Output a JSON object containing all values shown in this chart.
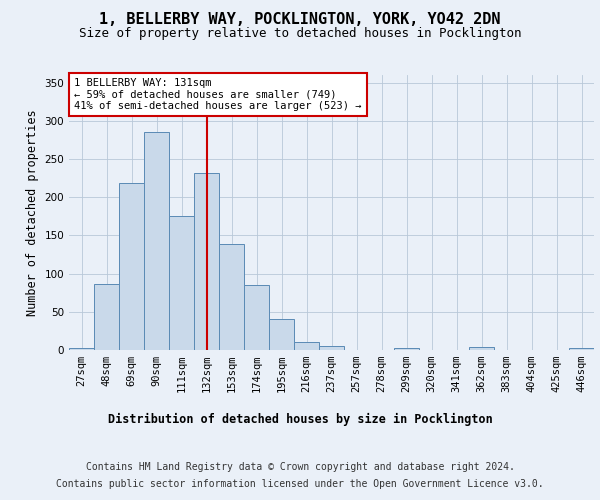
{
  "title": "1, BELLERBY WAY, POCKLINGTON, YORK, YO42 2DN",
  "subtitle": "Size of property relative to detached houses in Pocklington",
  "xlabel": "Distribution of detached houses by size in Pocklington",
  "ylabel": "Number of detached properties",
  "categories": [
    "27sqm",
    "48sqm",
    "69sqm",
    "90sqm",
    "111sqm",
    "132sqm",
    "153sqm",
    "174sqm",
    "195sqm",
    "216sqm",
    "237sqm",
    "257sqm",
    "278sqm",
    "299sqm",
    "320sqm",
    "341sqm",
    "362sqm",
    "383sqm",
    "404sqm",
    "425sqm",
    "446sqm"
  ],
  "values": [
    2,
    87,
    218,
    285,
    175,
    232,
    139,
    85,
    40,
    10,
    5,
    0,
    0,
    2,
    0,
    0,
    4,
    0,
    0,
    0,
    2
  ],
  "bar_color": "#c9d9ea",
  "bar_edge_color": "#5a8ab5",
  "vline_x_index": 5,
  "vline_color": "#cc0000",
  "annotation_text": "1 BELLERBY WAY: 131sqm\n← 59% of detached houses are smaller (749)\n41% of semi-detached houses are larger (523) →",
  "annotation_box_color": "#ffffff",
  "annotation_box_edge_color": "#cc0000",
  "background_color": "#eaf0f8",
  "plot_background_color": "#eaf0f8",
  "footer_line1": "Contains HM Land Registry data © Crown copyright and database right 2024.",
  "footer_line2": "Contains public sector information licensed under the Open Government Licence v3.0.",
  "ylim": [
    0,
    360
  ],
  "title_fontsize": 11,
  "subtitle_fontsize": 9,
  "axis_label_fontsize": 8.5,
  "tick_fontsize": 7.5,
  "footer_fontsize": 7
}
